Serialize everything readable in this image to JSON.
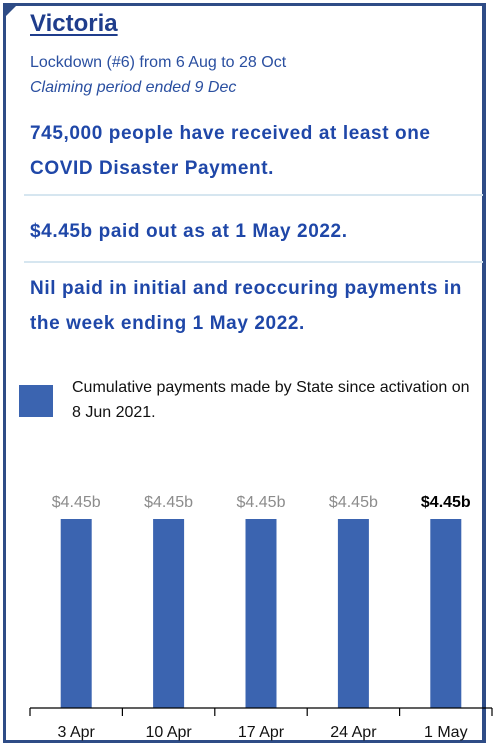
{
  "title": "Victoria",
  "lockdown": "Lockdown (#6) from 6 Aug to 28 Oct",
  "claiming": "Claiming period ended 9 Dec",
  "headline1": "745,000 people have received at least one COVID Disaster Payment.",
  "headline2": "$4.45b paid out as at 1 May 2022.",
  "headline3": "Nil paid in initial and reoccuring payments in the week ending 1 May 2022.",
  "legend": "Cumulative payments made by State since activation on 8 Jun 2021.",
  "colors": {
    "bar": "#3b64b0",
    "accent": "#1f47a8",
    "border": "#2e4c86"
  },
  "chart_data": {
    "type": "bar",
    "categories": [
      "3 Apr",
      "10 Apr",
      "17 Apr",
      "24 Apr",
      "1 May"
    ],
    "values": [
      4.45,
      4.45,
      4.45,
      4.45,
      4.45
    ],
    "labels": [
      "$4.45b",
      "$4.45b",
      "$4.45b",
      "$4.45b",
      "$4.45b"
    ],
    "ylim": [
      0,
      4.45
    ],
    "highlight_index": 4
  }
}
